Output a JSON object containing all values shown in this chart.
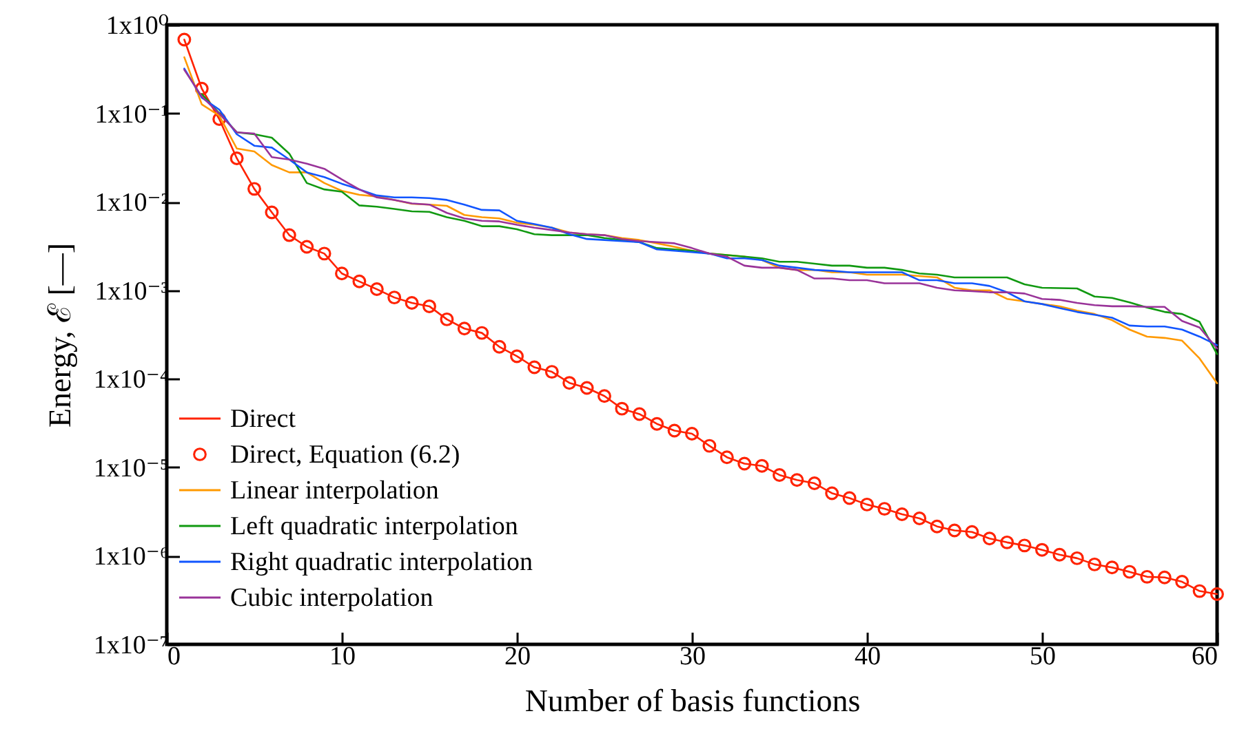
{
  "chart_data": {
    "type": "line",
    "xlabel": "Number of basis functions",
    "ylabel": "Energy, ℰ [—]",
    "x": [
      1,
      2,
      3,
      4,
      5,
      6,
      7,
      8,
      9,
      10,
      11,
      12,
      13,
      14,
      15,
      16,
      17,
      18,
      19,
      20,
      21,
      22,
      23,
      24,
      25,
      26,
      27,
      28,
      29,
      30,
      31,
      32,
      33,
      34,
      35,
      36,
      37,
      38,
      39,
      40,
      41,
      42,
      43,
      44,
      45,
      46,
      47,
      48,
      49,
      50,
      51,
      52,
      53,
      54,
      55,
      56,
      57,
      58,
      59,
      60
    ],
    "xlim": [
      0,
      60
    ],
    "xticks": [
      0,
      10,
      20,
      30,
      40,
      50,
      60
    ],
    "ylim": [
      1e-07,
      1
    ],
    "yticks": [
      {
        "value": 1e-07,
        "label": "1x10⁻⁷"
      },
      {
        "value": 1e-06,
        "label": "1x10⁻⁶"
      },
      {
        "value": 1e-05,
        "label": "1x10⁻⁵"
      },
      {
        "value": 0.0001,
        "label": "1x10⁻⁴"
      },
      {
        "value": 0.001,
        "label": "1x10⁻³"
      },
      {
        "value": 0.01,
        "label": "1x10⁻²"
      },
      {
        "value": 0.1,
        "label": "1x10⁻¹"
      },
      {
        "value": 1,
        "label": "1x10⁰"
      }
    ],
    "log": "y",
    "grid": false,
    "legend": "bottom left",
    "series": [
      {
        "name": "Direct",
        "color": "#ff2200",
        "values": [
          0.68,
          0.19,
          0.086,
          0.031,
          0.014,
          0.0076,
          0.0042,
          0.0031,
          0.0026,
          0.00155,
          0.00126,
          0.00103,
          0.00083,
          0.00072,
          0.00066,
          0.00047,
          0.00037,
          0.00033,
          0.00023,
          0.00018,
          0.000135,
          0.00012,
          9e-05,
          7.9e-05,
          6.4e-05,
          4.6e-05,
          4e-05,
          3.1e-05,
          2.6e-05,
          2.4e-05,
          1.75e-05,
          1.3e-05,
          1.1e-05,
          1.04e-05,
          8.2e-06,
          7.2e-06,
          6.6e-06,
          5.1e-06,
          4.5e-06,
          3.8e-06,
          3.4e-06,
          2.95e-06,
          2.65e-06,
          2.15e-06,
          1.94e-06,
          1.86e-06,
          1.57e-06,
          1.42e-06,
          1.31e-06,
          1.17e-06,
          1.03e-06,
          9.4e-07,
          8e-07,
          7.4e-07,
          6.6e-07,
          5.8e-07,
          5.7e-07,
          5.1e-07,
          4e-07,
          3.7e-07
        ]
      },
      {
        "name": "Direct, Equation (6.2)",
        "type": "scatter",
        "marker": "circle",
        "color": "#ff2200",
        "values": [
          0.68,
          0.19,
          0.086,
          0.031,
          0.014,
          0.0076,
          0.0042,
          0.0031,
          0.0026,
          0.00155,
          0.00126,
          0.00103,
          0.00083,
          0.00072,
          0.00066,
          0.00047,
          0.00037,
          0.00033,
          0.00023,
          0.00018,
          0.000135,
          0.00012,
          9e-05,
          7.9e-05,
          6.4e-05,
          4.6e-05,
          4e-05,
          3.1e-05,
          2.6e-05,
          2.4e-05,
          1.75e-05,
          1.3e-05,
          1.1e-05,
          1.04e-05,
          8.2e-06,
          7.2e-06,
          6.6e-06,
          5.1e-06,
          4.5e-06,
          3.8e-06,
          3.4e-06,
          2.95e-06,
          2.65e-06,
          2.15e-06,
          1.94e-06,
          1.86e-06,
          1.57e-06,
          1.42e-06,
          1.31e-06,
          1.17e-06,
          1.03e-06,
          9.4e-07,
          8e-07,
          7.4e-07,
          6.6e-07,
          5.8e-07,
          5.7e-07,
          5.1e-07,
          4e-07,
          3.7e-07
        ]
      },
      {
        "name": "Linear interpolation",
        "color": "#ff9900",
        "values": [
          0.43,
          0.126,
          0.094,
          0.04,
          0.037,
          0.026,
          0.0215,
          0.0215,
          0.0163,
          0.0133,
          0.012,
          0.0115,
          0.0105,
          0.0095,
          0.0093,
          0.009,
          0.0071,
          0.0067,
          0.0065,
          0.0058,
          0.0055,
          0.0051,
          0.0045,
          0.0043,
          0.0042,
          0.0039,
          0.0037,
          0.0034,
          0.0031,
          0.0028,
          0.0026,
          0.0025,
          0.0024,
          0.0022,
          0.0018,
          0.0017,
          0.0017,
          0.0016,
          0.0016,
          0.0015,
          0.0015,
          0.0015,
          0.00145,
          0.0014,
          0.00107,
          0.001,
          0.001,
          0.0008,
          0.00075,
          0.0007,
          0.00066,
          0.00059,
          0.00054,
          0.00046,
          0.00036,
          0.0003,
          0.00029,
          0.00027,
          0.00017,
          8.9e-05
        ]
      },
      {
        "name": "Left quadratic interpolation",
        "color": "#119911",
        "values": [
          null,
          0.165,
          0.1,
          0.061,
          0.058,
          0.053,
          0.035,
          0.0163,
          0.0138,
          0.013,
          0.0091,
          0.0088,
          0.0083,
          0.0078,
          0.0077,
          0.0067,
          0.0061,
          0.0053,
          0.0053,
          0.0049,
          0.0043,
          0.0042,
          0.0042,
          0.0042,
          0.0039,
          0.0037,
          0.0035,
          0.003,
          0.0029,
          0.0028,
          0.0026,
          0.0025,
          0.0024,
          0.0023,
          0.0021,
          0.0021,
          0.002,
          0.0019,
          0.0019,
          0.0018,
          0.0018,
          0.0017,
          0.00155,
          0.0015,
          0.0014,
          0.0014,
          0.0014,
          0.0014,
          0.00117,
          0.00107,
          0.00106,
          0.00105,
          0.00085,
          0.00082,
          0.00073,
          0.00064,
          0.00057,
          0.00054,
          0.00044,
          0.00019
        ]
      },
      {
        "name": "Right quadratic interpolation",
        "color": "#1155ff",
        "values": [
          0.32,
          0.15,
          0.11,
          0.058,
          0.043,
          0.041,
          0.03,
          0.0215,
          0.019,
          0.016,
          0.0138,
          0.0118,
          0.0112,
          0.0112,
          0.011,
          0.0105,
          0.0093,
          0.0081,
          0.008,
          0.0061,
          0.0056,
          0.0051,
          0.0043,
          0.0038,
          0.0037,
          0.0036,
          0.0035,
          0.0029,
          0.0028,
          0.0027,
          0.0026,
          0.0023,
          0.0023,
          0.0022,
          0.0019,
          0.0018,
          0.0017,
          0.00166,
          0.0016,
          0.0016,
          0.0016,
          0.0016,
          0.0013,
          0.0013,
          0.0012,
          0.0012,
          0.00112,
          0.00095,
          0.00075,
          0.0007,
          0.00063,
          0.00057,
          0.00053,
          0.00049,
          0.0004,
          0.00039,
          0.00039,
          0.00036,
          0.0003,
          0.00024
        ]
      },
      {
        "name": "Cubic interpolation",
        "color": "#993399",
        "values": [
          0.31,
          0.155,
          0.099,
          0.061,
          0.059,
          0.032,
          0.03,
          0.027,
          0.0236,
          0.0179,
          0.0138,
          0.0112,
          0.0105,
          0.0096,
          0.0093,
          0.0075,
          0.0065,
          0.0061,
          0.006,
          0.0055,
          0.0051,
          0.0048,
          0.0045,
          0.0043,
          0.0042,
          0.0038,
          0.0036,
          0.0035,
          0.0034,
          0.003,
          0.0026,
          0.0024,
          0.0019,
          0.0018,
          0.0018,
          0.0017,
          0.00136,
          0.00136,
          0.0013,
          0.0013,
          0.0012,
          0.0012,
          0.0012,
          0.00107,
          0.001,
          0.00098,
          0.00095,
          0.00095,
          0.00092,
          0.0008,
          0.00078,
          0.00072,
          0.00068,
          0.00066,
          0.00066,
          0.00065,
          0.00065,
          0.00045,
          0.00038,
          0.00022
        ]
      }
    ]
  }
}
